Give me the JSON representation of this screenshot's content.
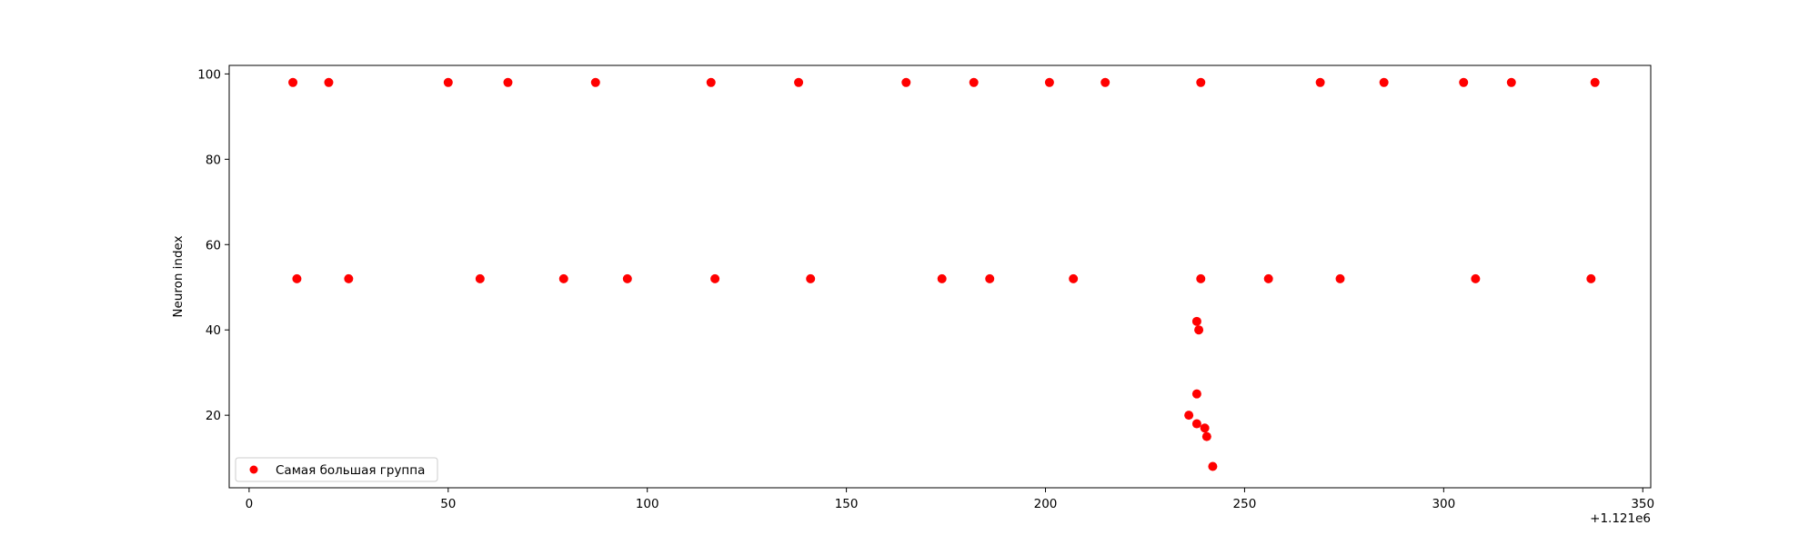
{
  "chart_data": {
    "type": "scatter",
    "title": "",
    "xlabel": "",
    "ylabel": "Neuron index",
    "x_offset_label": "+1.121e6",
    "x_ticks": [
      0,
      50,
      100,
      150,
      200,
      250,
      300,
      350
    ],
    "y_ticks": [
      20,
      40,
      60,
      80,
      100
    ],
    "xlim": [
      -5,
      352
    ],
    "ylim": [
      3,
      102
    ],
    "grid": false,
    "legend_position": "lower-left",
    "colors": {
      "series": "#ff0000",
      "axes": "#000000",
      "background": "#ffffff"
    },
    "series": [
      {
        "name": "Самая большая группа",
        "marker": "circle",
        "points": [
          {
            "x": 1121011,
            "y": 98
          },
          {
            "x": 1121020,
            "y": 98
          },
          {
            "x": 1121050,
            "y": 98
          },
          {
            "x": 1121065,
            "y": 98
          },
          {
            "x": 1121087,
            "y": 98
          },
          {
            "x": 1121116,
            "y": 98
          },
          {
            "x": 1121138,
            "y": 98
          },
          {
            "x": 1121165,
            "y": 98
          },
          {
            "x": 1121182,
            "y": 98
          },
          {
            "x": 1121201,
            "y": 98
          },
          {
            "x": 1121215,
            "y": 98
          },
          {
            "x": 1121239,
            "y": 98
          },
          {
            "x": 1121269,
            "y": 98
          },
          {
            "x": 1121285,
            "y": 98
          },
          {
            "x": 1121305,
            "y": 98
          },
          {
            "x": 1121317,
            "y": 98
          },
          {
            "x": 1121338,
            "y": 98
          },
          {
            "x": 1121012,
            "y": 52
          },
          {
            "x": 1121025,
            "y": 52
          },
          {
            "x": 1121058,
            "y": 52
          },
          {
            "x": 1121079,
            "y": 52
          },
          {
            "x": 1121095,
            "y": 52
          },
          {
            "x": 1121117,
            "y": 52
          },
          {
            "x": 1121141,
            "y": 52
          },
          {
            "x": 1121174,
            "y": 52
          },
          {
            "x": 1121186,
            "y": 52
          },
          {
            "x": 1121207,
            "y": 52
          },
          {
            "x": 1121239,
            "y": 52
          },
          {
            "x": 1121256,
            "y": 52
          },
          {
            "x": 1121274,
            "y": 52
          },
          {
            "x": 1121308,
            "y": 52
          },
          {
            "x": 1121337,
            "y": 52
          },
          {
            "x": 1121238,
            "y": 42
          },
          {
            "x": 1121238.5,
            "y": 40
          },
          {
            "x": 1121238,
            "y": 25
          },
          {
            "x": 1121236,
            "y": 20
          },
          {
            "x": 1121238,
            "y": 18
          },
          {
            "x": 1121240,
            "y": 17
          },
          {
            "x": 1121240.5,
            "y": 15
          },
          {
            "x": 1121242,
            "y": 8
          }
        ]
      }
    ]
  }
}
